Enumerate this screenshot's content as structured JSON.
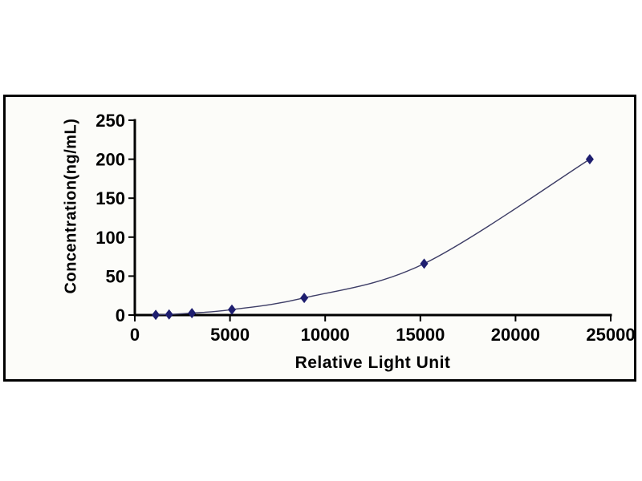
{
  "figure": {
    "kind": "standard-curve-chart",
    "frame_border_color": "#000000",
    "frame_background": "#fcfcf9",
    "outer_background": "#ffffff"
  },
  "chart_data": {
    "type": "line",
    "title": "",
    "xlabel": "Relative Light Unit",
    "ylabel": "Concentration(ng/mL)",
    "series": [
      {
        "name": "standard-curve",
        "x": [
          1100,
          1800,
          3000,
          5100,
          8900,
          15200,
          23900
        ],
        "y": [
          0.3,
          0.8,
          2.5,
          7,
          22,
          66,
          200
        ]
      }
    ],
    "xlim": [
      0,
      25000
    ],
    "ylim": [
      0,
      250
    ],
    "xticks": [
      0,
      5000,
      10000,
      15000,
      20000,
      25000
    ],
    "xtick_labels": [
      "0",
      "5000",
      "10000",
      "15000",
      "20000",
      "25000"
    ],
    "yticks": [
      0,
      50,
      100,
      150,
      200,
      250
    ],
    "ytick_labels": [
      "0",
      "50",
      "100",
      "150",
      "200",
      "250"
    ],
    "grid": false,
    "legend_position": "none",
    "marker": "diamond",
    "colors": {
      "line": "#3d3d66",
      "marker": "#1e1e6f",
      "axis": "#000000",
      "tick_text": "#000000"
    }
  }
}
